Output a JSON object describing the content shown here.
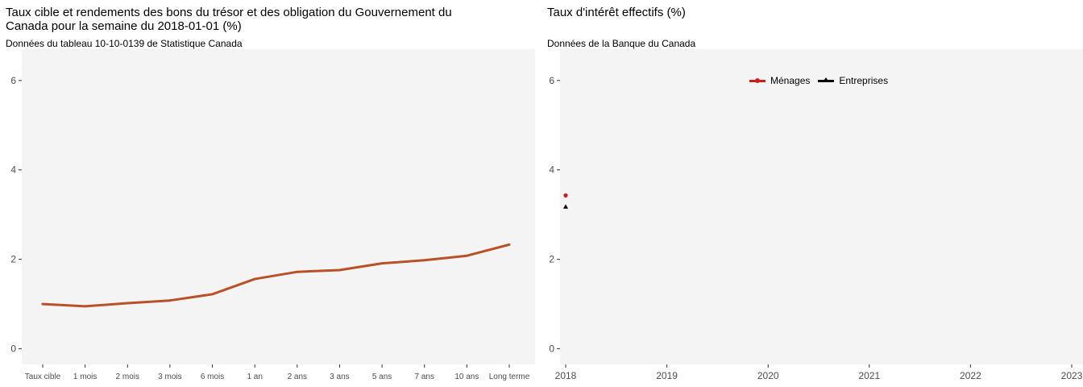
{
  "chart_data": [
    {
      "type": "line",
      "title": "Taux cible et rendements des bons du trésor et des obligation du Gouvernement du\nCanada pour la semaine du 2018-01-01 (%)",
      "subtitle": "Données du tableau 10-10-0139 de Statistique Canada",
      "categories": [
        "Taux cible",
        "1 mois",
        "2 mois",
        "3 mois",
        "6 mois",
        "1 an",
        "2 ans",
        "3 ans",
        "5 ans",
        "7 ans",
        "10 ans",
        "Long terme"
      ],
      "values": [
        1.0,
        0.95,
        1.02,
        1.08,
        1.22,
        1.56,
        1.72,
        1.76,
        1.91,
        1.98,
        2.08,
        2.33
      ],
      "ylim": [
        -0.35,
        6.7
      ],
      "yticks": [
        0,
        2,
        4,
        6
      ],
      "grid": false,
      "color": "#b85128"
    },
    {
      "type": "line",
      "title": "Taux d'intérêt effectifs (%)",
      "subtitle": "Données de la Banque du Canada",
      "x_domain": [
        2017.95,
        2023.0
      ],
      "xticks": [
        2018,
        2019,
        2020,
        2021,
        2022,
        2023
      ],
      "ylim": [
        -0.35,
        6.7
      ],
      "yticks": [
        0,
        2,
        4,
        6
      ],
      "grid": false,
      "legend_position": "top",
      "series": [
        {
          "name": "Ménages",
          "color": "#cc1f1f",
          "marker": "circle",
          "points": [
            {
              "x": 2018.0,
              "y": 3.43
            }
          ]
        },
        {
          "name": "Entreprises",
          "color": "#000000",
          "marker": "triangle",
          "points": [
            {
              "x": 2018.0,
              "y": 3.18
            }
          ]
        }
      ]
    }
  ]
}
